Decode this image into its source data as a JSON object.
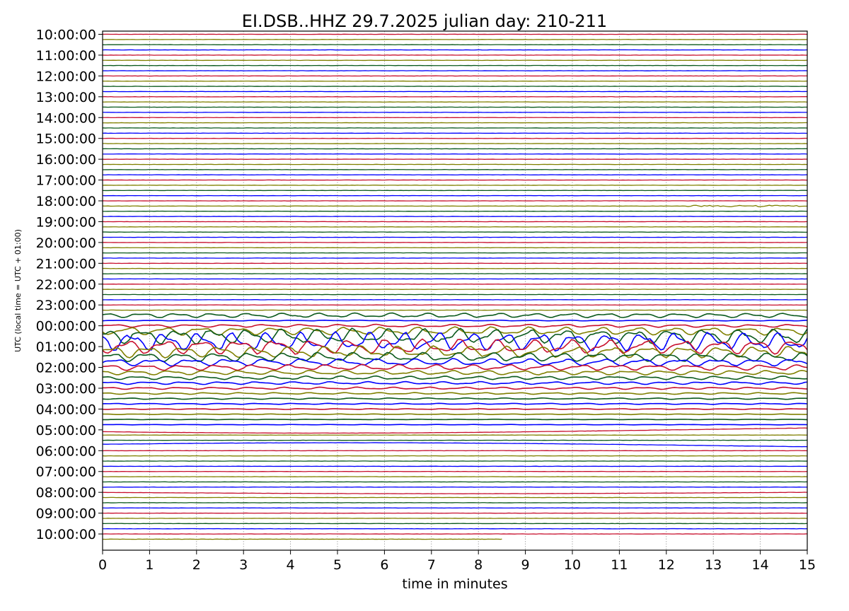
{
  "chart_data": {
    "type": "line",
    "title": "EI.DSB..HHZ   29.7.2025   julian day: 210-211",
    "xlabel": "time in minutes",
    "ylabel": "UTC (local time = UTC + 01:00)",
    "xlim": [
      0,
      15
    ],
    "x_ticks": [
      0,
      1,
      2,
      3,
      4,
      5,
      6,
      7,
      8,
      9,
      10,
      11,
      12,
      13,
      14,
      15
    ],
    "y_tick_labels": [
      "10:00:00",
      "11:00:00",
      "12:00:00",
      "13:00:00",
      "14:00:00",
      "15:00:00",
      "16:00:00",
      "17:00:00",
      "18:00:00",
      "19:00:00",
      "20:00:00",
      "21:00:00",
      "22:00:00",
      "23:00:00",
      "00:00:00",
      "01:00:00",
      "02:00:00",
      "03:00:00",
      "04:00:00",
      "05:00:00",
      "06:00:00",
      "07:00:00",
      "08:00:00",
      "09:00:00",
      "10:00:00"
    ],
    "grid": "vertical dotted lines at each minute",
    "trace_colors": [
      "#c8102e",
      "#808000",
      "#0b5a1d",
      "#0000ff"
    ],
    "trace_count": 98,
    "last_trace_end_minute": 8.5,
    "traces_per_hour": 4,
    "minutes_per_trace": 15,
    "events": [
      {
        "from_trace": 54,
        "to_trace": 75,
        "peak_trace": 59,
        "peak_amplitude": 1.0,
        "description_type": "teleseismic surface waves, ~1.3 cycles per minute"
      },
      {
        "trace": 33,
        "from_minute": 12.4,
        "to_minute": 15,
        "amplitude": 0.05
      }
    ],
    "long_period_drift": [
      {
        "trace": 76,
        "amplitude": 0.35
      },
      {
        "trace": 79,
        "amplitude": 0.3
      },
      {
        "trace": 88,
        "amplitude": 0.15
      }
    ]
  }
}
